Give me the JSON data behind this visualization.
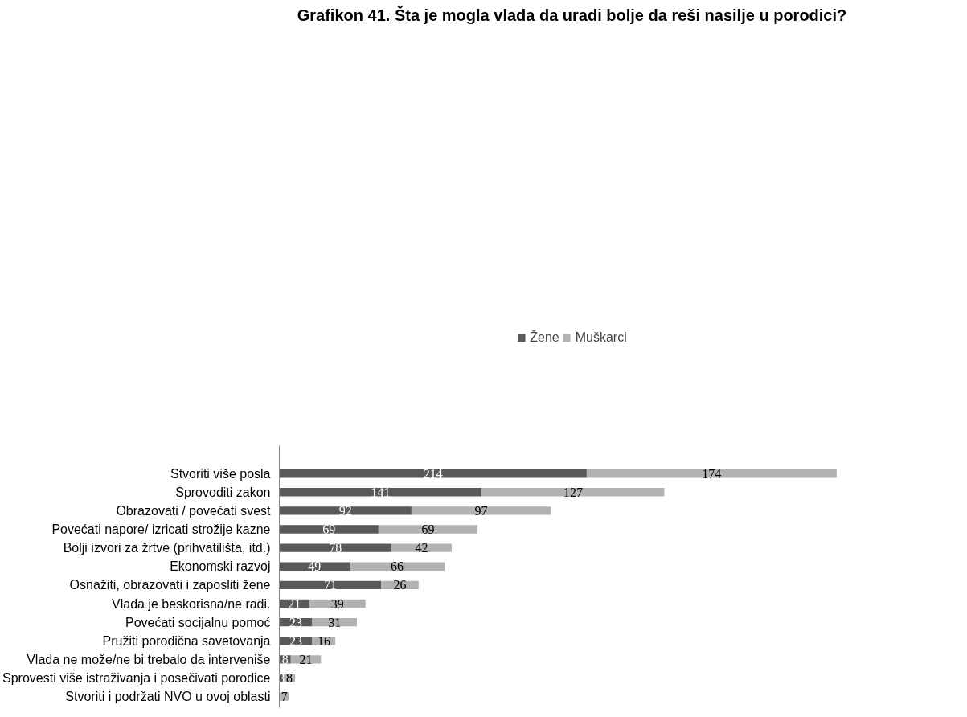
{
  "chart_data": {
    "type": "bar",
    "orientation": "horizontal",
    "stacked": true,
    "title": "Grafikon 41. Šta je mogla vlada da uradi bolje da reši nasilje u porodici?",
    "legend": "top",
    "categories": [
      "Stvoriti više posla",
      "Sprovoditi zakon",
      "Obrazovati / povećati svest",
      "Povećati napore/ izricati strožije kazne",
      "Bolji izvori za žrtve (prihvatilišta, itd.)",
      "Ekonomski razvoj",
      "Osnažiti, obrazovati i zaposliti žene",
      "Vlada je beskorisna/ne radi.",
      "Povećati socijalnu pomoć",
      "Pružiti porodična savetovanja",
      "Vlada ne može/ne bi trebalo da interveniše",
      "Sprovesti više istraživanja i posečivati porodice",
      "Stvoriti i podržati NVO u ovoj oblasti"
    ],
    "series": [
      {
        "name": "Žene",
        "color": "#595959",
        "values": [
          214,
          141,
          92,
          69,
          78,
          49,
          71,
          21,
          23,
          23,
          8,
          3,
          0
        ],
        "value_labels": [
          "214",
          "141",
          "92",
          "69",
          "78",
          "49",
          "71",
          "21",
          "23",
          "23",
          "8",
          "3",
          null
        ]
      },
      {
        "name": "Muškarci",
        "color": "#b2b2b2",
        "values": [
          174,
          127,
          97,
          69,
          42,
          66,
          26,
          39,
          31,
          16,
          21,
          8,
          7
        ],
        "value_labels": [
          "174",
          "127",
          "97",
          "69",
          "42",
          "66",
          "26",
          "39",
          "31",
          "16",
          "21",
          "8",
          "7"
        ]
      }
    ]
  }
}
